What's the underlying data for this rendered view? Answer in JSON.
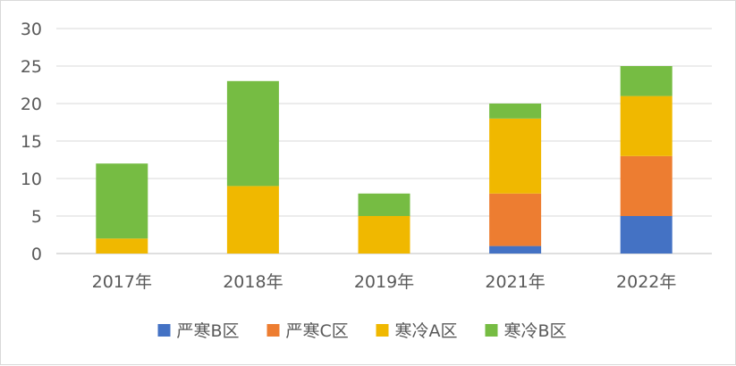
{
  "chart_data": {
    "type": "bar",
    "stacked": true,
    "categories": [
      "2017年",
      "2018年",
      "2019年",
      "2021年",
      "2022年"
    ],
    "series": [
      {
        "name": "严寒B区",
        "values": [
          0,
          0,
          0,
          1,
          5
        ],
        "color": "#4472c4"
      },
      {
        "name": "严寒C区",
        "values": [
          0,
          0,
          0,
          7,
          8
        ],
        "color": "#ed7d31"
      },
      {
        "name": "寒冷A区",
        "values": [
          2,
          9,
          5,
          10,
          8
        ],
        "color": "#f0b800"
      },
      {
        "name": "寒冷B区",
        "values": [
          10,
          14,
          3,
          2,
          4
        ],
        "color": "#76bc43"
      }
    ],
    "ylim": [
      0,
      30
    ],
    "yticks": [
      0,
      5,
      10,
      15,
      20,
      25,
      30
    ],
    "title": "",
    "xlabel": "",
    "ylabel": "",
    "grid": true,
    "legend": "bottom"
  }
}
